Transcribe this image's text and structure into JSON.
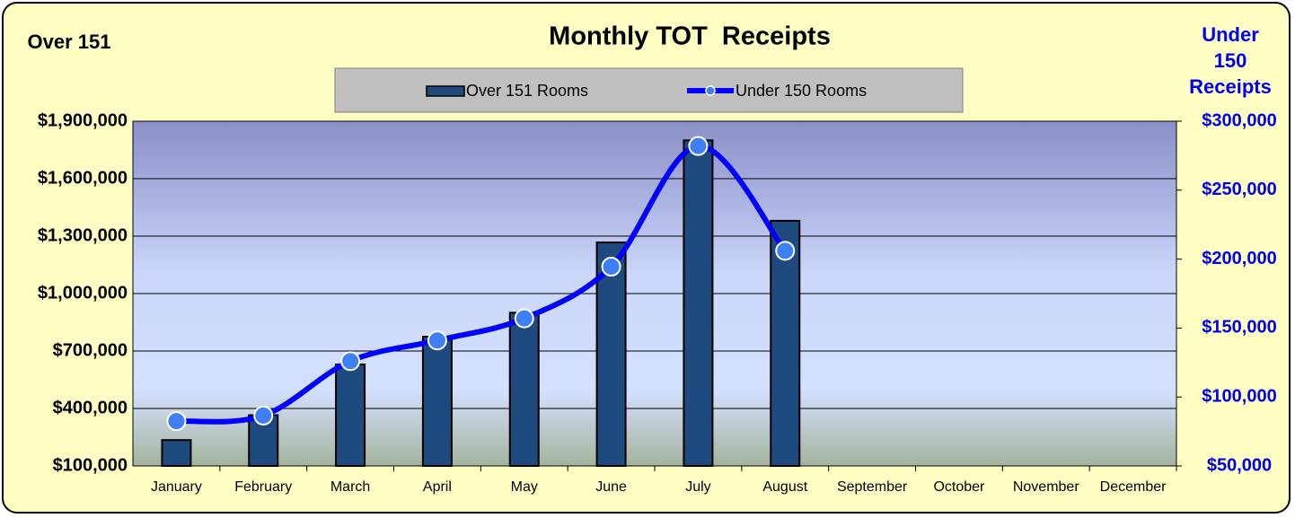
{
  "chart_data": {
    "type": "combo",
    "title": "Monthly TOT  Receipts",
    "y_label": "Over 151",
    "y2_label": "Under 150 Receipts",
    "categories": [
      "January",
      "February",
      "March",
      "April",
      "May",
      "June",
      "July",
      "August",
      "September",
      "October",
      "November",
      "December"
    ],
    "series": [
      {
        "name": "Over 151 Rooms",
        "type": "bar",
        "color": "#1f4a7e",
        "values": [
          235000,
          365000,
          630000,
          775000,
          900000,
          1267000,
          1800000,
          1380000,
          null,
          null,
          null,
          null
        ]
      },
      {
        "name": "Under 150 Rooms",
        "type": "line",
        "axis": "y2",
        "color": "#0000ff",
        "marker_color": "#3f7ff5",
        "smooth": true,
        "values": [
          82500,
          86500,
          126000,
          141000,
          157000,
          194500,
          282000,
          206000,
          null,
          null,
          null,
          null
        ]
      }
    ],
    "ylim": [
      100000,
      1900000
    ],
    "yticks": [
      {
        "value": 100000,
        "label": "$100,000"
      },
      {
        "value": 400000,
        "label": "$400,000"
      },
      {
        "value": 700000,
        "label": "$700,000"
      },
      {
        "value": 1000000,
        "label": "$1,000,000"
      },
      {
        "value": 1300000,
        "label": "$1,300,000"
      },
      {
        "value": 1600000,
        "label": "$1,600,000"
      },
      {
        "value": 1900000,
        "label": "$1,900,000"
      }
    ],
    "y2lim": [
      50000,
      300000
    ],
    "y2ticks": [
      {
        "value": 50000,
        "label": "$50,000"
      },
      {
        "value": 100000,
        "label": "$100,000"
      },
      {
        "value": 150000,
        "label": "$150,000"
      },
      {
        "value": 200000,
        "label": "$200,000"
      },
      {
        "value": 250000,
        "label": "$250,000"
      },
      {
        "value": 300000,
        "label": "$300,000"
      }
    ],
    "grid": true
  }
}
